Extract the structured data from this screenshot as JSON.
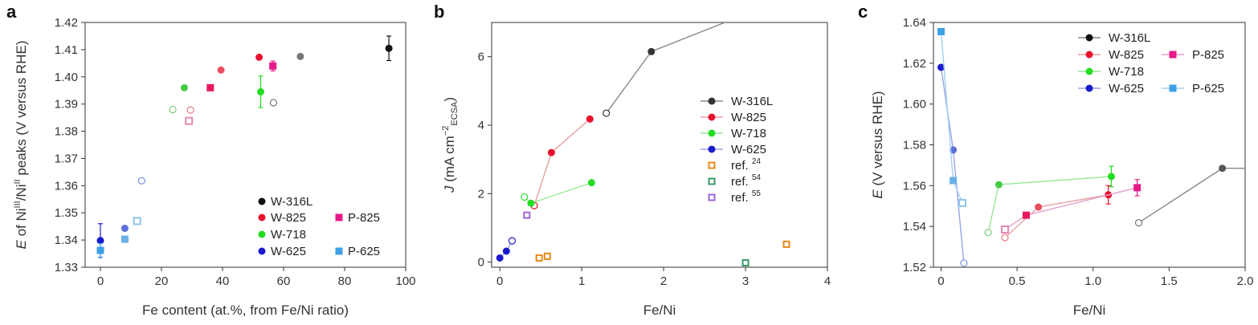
{
  "chart_data": [
    {
      "type": "scatter",
      "panel_label": "a",
      "xlabel": "Fe content (at.%, from Fe/Ni ratio)",
      "ylabel": {
        "pre": "E",
        "mid1": " of Ni",
        "sup1": "III",
        "mid2": "/Ni",
        "sup2": "II",
        "post": " peaks (V versus RHE)"
      },
      "xlim": [
        -5,
        100
      ],
      "ylim": [
        1.33,
        1.42
      ],
      "xticks": [
        "0",
        "20",
        "40",
        "60",
        "80",
        "100"
      ],
      "xtick_values": [
        0,
        20,
        40,
        60,
        80,
        100
      ],
      "yticks": [
        "1.33",
        "1.34",
        "1.35",
        "1.36",
        "1.37",
        "1.38",
        "1.39",
        "1.40",
        "1.41",
        "1.42"
      ],
      "ytick_values": [
        1.33,
        1.34,
        1.35,
        1.36,
        1.37,
        1.38,
        1.39,
        1.4,
        1.41,
        1.42
      ],
      "legend_position": "bottom-right",
      "legend": [
        {
          "name": "W-316L",
          "color": "#111111",
          "marker": "circle"
        },
        {
          "name": "W-825",
          "color": "#e8112d",
          "marker": "circle"
        },
        {
          "name": "W-718",
          "color": "#22dd22",
          "marker": "circle"
        },
        {
          "name": "W-625",
          "color": "#1a1acc",
          "marker": "circle"
        },
        {
          "name": "P-825",
          "color": "#e6198a",
          "marker": "square"
        },
        {
          "name": "P-625",
          "color": "#3fa0e6",
          "marker": "square"
        }
      ],
      "points": [
        {
          "x": 94.5,
          "y": 1.4105,
          "color": "#111111",
          "marker": "circle",
          "style": "filled",
          "err": 0.0045
        },
        {
          "x": 65.5,
          "y": 1.4075,
          "color": "#777777",
          "marker": "circle",
          "style": "filled"
        },
        {
          "x": 56.7,
          "y": 1.3905,
          "color": "#777777",
          "marker": "circle",
          "style": "open"
        },
        {
          "x": 52,
          "y": 1.4072,
          "color": "#e8112d",
          "marker": "circle",
          "style": "filled"
        },
        {
          "x": 39.5,
          "y": 1.4025,
          "color": "#e8505f",
          "marker": "circle",
          "style": "filled"
        },
        {
          "x": 29.5,
          "y": 1.3878,
          "color": "#e87a86",
          "marker": "circle",
          "style": "open"
        },
        {
          "x": 52.5,
          "y": 1.3945,
          "color": "#22dd22",
          "marker": "circle",
          "style": "filled",
          "err": 0.0058
        },
        {
          "x": 27.5,
          "y": 1.396,
          "color": "#44cc44",
          "marker": "circle",
          "style": "filled"
        },
        {
          "x": 23.7,
          "y": 1.388,
          "color": "#77cc77",
          "marker": "circle",
          "style": "open"
        },
        {
          "x": 0,
          "y": 1.3398,
          "color": "#1a1acc",
          "marker": "circle",
          "style": "filled",
          "err": 0.0062
        },
        {
          "x": 8,
          "y": 1.3443,
          "color": "#5a6fdd",
          "marker": "circle",
          "style": "filled"
        },
        {
          "x": 13.5,
          "y": 1.3618,
          "color": "#7a8fdd",
          "marker": "circle",
          "style": "open"
        },
        {
          "x": 56.5,
          "y": 1.404,
          "color": "#e6198a",
          "marker": "square",
          "style": "filled",
          "err": 0.0018
        },
        {
          "x": 36,
          "y": 1.396,
          "color": "#e8195a",
          "marker": "square",
          "style": "filled"
        },
        {
          "x": 29,
          "y": 1.3838,
          "color": "#e889b0",
          "marker": "square",
          "style": "open"
        },
        {
          "x": 0,
          "y": 1.3362,
          "color": "#3fa0e6",
          "marker": "square",
          "style": "filled",
          "err": 0.0025
        },
        {
          "x": 8,
          "y": 1.3403,
          "color": "#6bb0e6",
          "marker": "square",
          "style": "filled"
        },
        {
          "x": 12,
          "y": 1.347,
          "color": "#8fc4ea",
          "marker": "square",
          "style": "open"
        }
      ]
    },
    {
      "type": "line",
      "panel_label": "b",
      "xlabel": "Fe/Ni",
      "ylabel": {
        "pre": "J",
        "post": " (mA cm",
        "sup": "−2",
        "sub": "ECSA",
        "end": ")"
      },
      "xlim": [
        -0.1,
        4
      ],
      "ylim": [
        -0.15,
        7
      ],
      "xticks": [
        "0",
        "1",
        "2",
        "3",
        "4"
      ],
      "xtick_values": [
        0,
        1,
        2,
        3,
        4
      ],
      "yticks": [
        "0",
        "2",
        "4",
        "6"
      ],
      "ytick_values": [
        0,
        2,
        4,
        6
      ],
      "legend_position": "right",
      "series": [
        {
          "name": "W-316L",
          "color": "#888888",
          "line": true,
          "marker_color": "#333333",
          "points": [
            {
              "x": 1.3,
              "y": 4.35,
              "style": "open"
            },
            {
              "x": 1.85,
              "y": 6.15,
              "style": "filled"
            },
            {
              "x": 2.8,
              "y": 7.05,
              "style": "none"
            }
          ]
        },
        {
          "name": "W-825",
          "color": "#e8a0a0",
          "line": true,
          "marker_color": "#e8112d",
          "points": [
            {
              "x": 0.42,
              "y": 1.65,
              "style": "open"
            },
            {
              "x": 0.63,
              "y": 3.2,
              "style": "filled"
            },
            {
              "x": 1.1,
              "y": 4.18,
              "style": "filled"
            }
          ]
        },
        {
          "name": "W-718",
          "color": "#99e699",
          "line": true,
          "marker_color": "#22dd22",
          "points": [
            {
              "x": 0.3,
              "y": 1.9,
              "style": "open"
            },
            {
              "x": 0.38,
              "y": 1.72,
              "style": "filled"
            },
            {
              "x": 1.12,
              "y": 2.32,
              "style": "filled"
            }
          ]
        },
        {
          "name": "W-625",
          "color": "#99a4e6",
          "line": true,
          "marker_color": "#1a1acc",
          "points": [
            {
              "x": 0.0,
              "y": 0.12,
              "style": "filled"
            },
            {
              "x": 0.08,
              "y": 0.32,
              "style": "filled"
            },
            {
              "x": 0.15,
              "y": 0.62,
              "style": "open"
            }
          ]
        },
        {
          "name": "ref. ",
          "ref": "24",
          "color": "#e68a1a",
          "line": false,
          "marker_color": "#e68a1a",
          "marker": "square-open",
          "points": [
            {
              "x": 0.48,
              "y": 0.12
            },
            {
              "x": 0.58,
              "y": 0.17
            },
            {
              "x": 3.5,
              "y": 0.52
            }
          ]
        },
        {
          "name": "ref. ",
          "ref": "54",
          "color": "#3a9a6a",
          "line": false,
          "marker_color": "#3a9a6a",
          "marker": "square-open",
          "points": [
            {
              "x": 3.0,
              "y": -0.02
            }
          ]
        },
        {
          "name": "ref. ",
          "ref": "55",
          "color": "#a066dd",
          "line": false,
          "marker_color": "#a066dd",
          "marker": "square-open",
          "points": [
            {
              "x": 0.33,
              "y": 1.37
            }
          ]
        }
      ]
    },
    {
      "type": "line",
      "panel_label": "c",
      "xlabel": "Fe/Ni",
      "ylabel": {
        "pre": "E",
        "post": " (V versus RHE)"
      },
      "xlim": [
        -0.05,
        2.0
      ],
      "ylim": [
        1.52,
        1.64
      ],
      "xticks": [
        "0",
        "0.5",
        "1.0",
        "1.5",
        "2.0"
      ],
      "xtick_values": [
        0,
        0.5,
        1.0,
        1.5,
        2.0
      ],
      "yticks": [
        "1.52",
        "1.54",
        "1.56",
        "1.58",
        "1.60",
        "1.62",
        "1.64"
      ],
      "ytick_values": [
        1.52,
        1.54,
        1.56,
        1.58,
        1.6,
        1.62,
        1.64
      ],
      "legend_position": "top-right",
      "legend": [
        {
          "name": "W-316L",
          "color": "#888888",
          "marker_color": "#111111",
          "marker": "circle"
        },
        {
          "name": "W-825",
          "color": "#e8a0a0",
          "marker_color": "#e8112d",
          "marker": "circle"
        },
        {
          "name": "W-718",
          "color": "#99e699",
          "marker_color": "#22dd22",
          "marker": "circle"
        },
        {
          "name": "W-625",
          "color": "#99a4e6",
          "marker_color": "#1a1acc",
          "marker": "circle"
        },
        {
          "name": "P-825",
          "color": "#e6a0c8",
          "marker_color": "#e6198a",
          "marker": "square"
        },
        {
          "name": "P-625",
          "color": "#a0d0f0",
          "marker_color": "#3fa0e6",
          "marker": "square"
        }
      ],
      "series": [
        {
          "name": "W-316L",
          "color": "#888888",
          "marker": "circle",
          "points": [
            {
              "x": 1.3,
              "y": 1.5418,
              "style": "open",
              "mc": "#777777"
            },
            {
              "x": 1.85,
              "y": 1.5685,
              "style": "filled",
              "mc": "#555555"
            },
            {
              "x": 2.05,
              "y": 1.5685,
              "style": "none"
            }
          ]
        },
        {
          "name": "W-825",
          "color": "#e8a0a0",
          "marker": "circle",
          "points": [
            {
              "x": 0.42,
              "y": 1.5345,
              "style": "open",
              "mc": "#e87a86"
            },
            {
              "x": 0.64,
              "y": 1.5495,
              "style": "filled",
              "mc": "#e8505f"
            },
            {
              "x": 1.1,
              "y": 1.5555,
              "style": "filled",
              "mc": "#e8112d",
              "err": 0.0045
            }
          ]
        },
        {
          "name": "W-718",
          "color": "#99e699",
          "marker": "circle",
          "points": [
            {
              "x": 0.31,
              "y": 1.537,
              "style": "open",
              "mc": "#77cc77"
            },
            {
              "x": 0.38,
              "y": 1.5605,
              "style": "filled",
              "mc": "#44cc44"
            },
            {
              "x": 1.12,
              "y": 1.5645,
              "style": "filled",
              "mc": "#22dd22",
              "err": 0.005
            }
          ]
        },
        {
          "name": "W-625",
          "color": "#99a4e6",
          "marker": "circle",
          "points": [
            {
              "x": 0.0,
              "y": 1.618,
              "style": "filled",
              "mc": "#1a1acc"
            },
            {
              "x": 0.08,
              "y": 1.5775,
              "style": "filled",
              "mc": "#5a6fdd"
            },
            {
              "x": 0.15,
              "y": 1.522,
              "style": "open",
              "mc": "#7a8fdd"
            }
          ]
        },
        {
          "name": "P-825",
          "color": "#e6a0c8",
          "marker": "square",
          "points": [
            {
              "x": 0.42,
              "y": 1.5385,
              "style": "open",
              "mc": "#e889b0"
            },
            {
              "x": 0.56,
              "y": 1.5455,
              "style": "filled",
              "mc": "#e8195a"
            },
            {
              "x": 1.29,
              "y": 1.559,
              "style": "filled",
              "mc": "#e6198a",
              "err": 0.004
            }
          ]
        },
        {
          "name": "P-625",
          "color": "#a0d0f0",
          "marker": "square",
          "points": [
            {
              "x": 0.0,
              "y": 1.6355,
              "style": "filled",
              "mc": "#3fa0e6"
            },
            {
              "x": 0.08,
              "y": 1.5625,
              "style": "filled",
              "mc": "#6bb0e6"
            },
            {
              "x": 0.14,
              "y": 1.5515,
              "style": "open",
              "mc": "#8fc4ea"
            }
          ]
        }
      ]
    }
  ]
}
